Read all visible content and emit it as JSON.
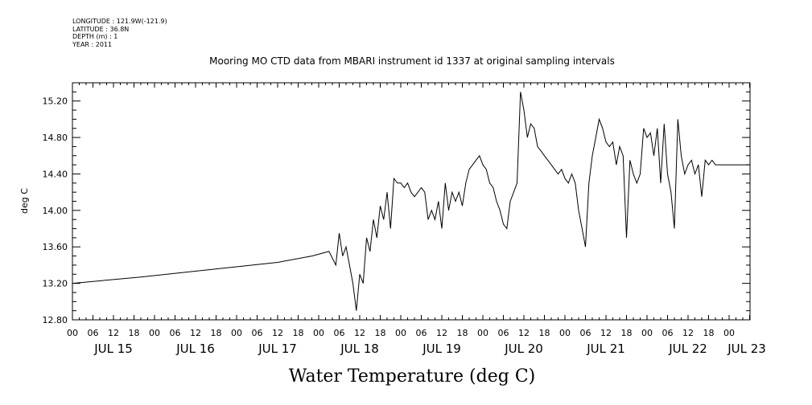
{
  "header": {
    "longitude": "LONGITUDE : 121.9W(-121.9)",
    "latitude": "LATITUDE : 36.8N",
    "depth": "DEPTH (m) : 1",
    "year": "YEAR : 2011"
  },
  "chart_data": {
    "type": "line",
    "title": "Mooring MO CTD data from MBARI instrument id 1337 at original sampling intervals",
    "xlabel": "Water Temperature (deg C)",
    "ylabel": "deg C",
    "x_unit": "hours after JUL 15 00:00, 2011",
    "xlim": [
      0,
      198
    ],
    "ylim": [
      12.8,
      15.4
    ],
    "y_ticks": [
      "12.80",
      "13.20",
      "13.60",
      "14.00",
      "14.40",
      "14.80",
      "15.20"
    ],
    "x_hour_ticks": [
      "00",
      "06",
      "12",
      "18",
      "00",
      "06",
      "12",
      "18",
      "00",
      "06",
      "12",
      "18",
      "00",
      "06",
      "12",
      "18",
      "00",
      "06",
      "12",
      "18",
      "00",
      "06",
      "12",
      "18",
      "00",
      "06",
      "12",
      "18",
      "00",
      "06",
      "12",
      "18",
      "00"
    ],
    "x_day_labels": [
      "JUL 15",
      "JUL 16",
      "JUL 17",
      "JUL 18",
      "JUL 19",
      "JUL 20",
      "JUL 21",
      "JUL 22",
      "JUL 23"
    ],
    "grid": false,
    "legend": "none",
    "series": [
      {
        "color": "#000000",
        "x": [
          0,
          20,
          40,
          60,
          70,
          75,
          77,
          78,
          79,
          80,
          81,
          82,
          83,
          84,
          85,
          86,
          87,
          88,
          89,
          90,
          91,
          92,
          93,
          94,
          95,
          96,
          97,
          98,
          99,
          100,
          101,
          102,
          103,
          104,
          105,
          106,
          107,
          108,
          109,
          110,
          111,
          112,
          113,
          114,
          115,
          116,
          117,
          118,
          119,
          120,
          121,
          122,
          123,
          124,
          125,
          126,
          127,
          128,
          129,
          130,
          131,
          132,
          133,
          134,
          135,
          136,
          137,
          138,
          139,
          140,
          141,
          142,
          143,
          144,
          145,
          146,
          147,
          148,
          149,
          150,
          151,
          152,
          153,
          154,
          155,
          156,
          157,
          158,
          159,
          160,
          161,
          162,
          163,
          164,
          165,
          166,
          167,
          168,
          169,
          170,
          171,
          172,
          173,
          174,
          175,
          176,
          177,
          178,
          179,
          180,
          181,
          182,
          183,
          184,
          185,
          186,
          187,
          188,
          189,
          190,
          191,
          192,
          193,
          194,
          195,
          196,
          197,
          198
        ],
        "values": [
          13.2,
          13.27,
          13.35,
          13.43,
          13.5,
          13.55,
          13.4,
          13.75,
          13.5,
          13.6,
          13.4,
          13.2,
          12.9,
          13.3,
          13.2,
          13.7,
          13.55,
          13.9,
          13.7,
          14.05,
          13.9,
          14.2,
          13.8,
          14.35,
          14.3,
          14.3,
          14.25,
          14.3,
          14.2,
          14.15,
          14.2,
          14.25,
          14.2,
          13.9,
          14.0,
          13.9,
          14.1,
          13.8,
          14.3,
          14.0,
          14.2,
          14.1,
          14.2,
          14.05,
          14.3,
          14.45,
          14.5,
          14.55,
          14.6,
          14.5,
          14.45,
          14.3,
          14.25,
          14.1,
          14.0,
          13.85,
          13.8,
          14.1,
          14.2,
          14.3,
          15.3,
          15.1,
          14.8,
          14.95,
          14.9,
          14.7,
          14.65,
          14.6,
          14.55,
          14.5,
          14.45,
          14.4,
          14.45,
          14.35,
          14.3,
          14.4,
          14.3,
          14.0,
          13.8,
          13.6,
          14.3,
          14.6,
          14.8,
          15.0,
          14.9,
          14.75,
          14.7,
          14.75,
          14.5,
          14.7,
          14.6,
          13.7,
          14.55,
          14.4,
          14.3,
          14.4,
          14.9,
          14.8,
          14.85,
          14.6,
          14.9,
          14.3,
          14.95,
          14.4,
          14.2,
          13.8,
          15.0,
          14.6,
          14.4,
          14.5,
          14.55,
          14.4,
          14.5,
          14.15,
          14.55,
          14.5,
          14.55,
          14.5,
          14.5,
          14.5,
          14.5,
          14.5,
          14.5,
          14.5,
          14.5,
          14.5,
          14.5,
          14.5
        ]
      }
    ]
  }
}
